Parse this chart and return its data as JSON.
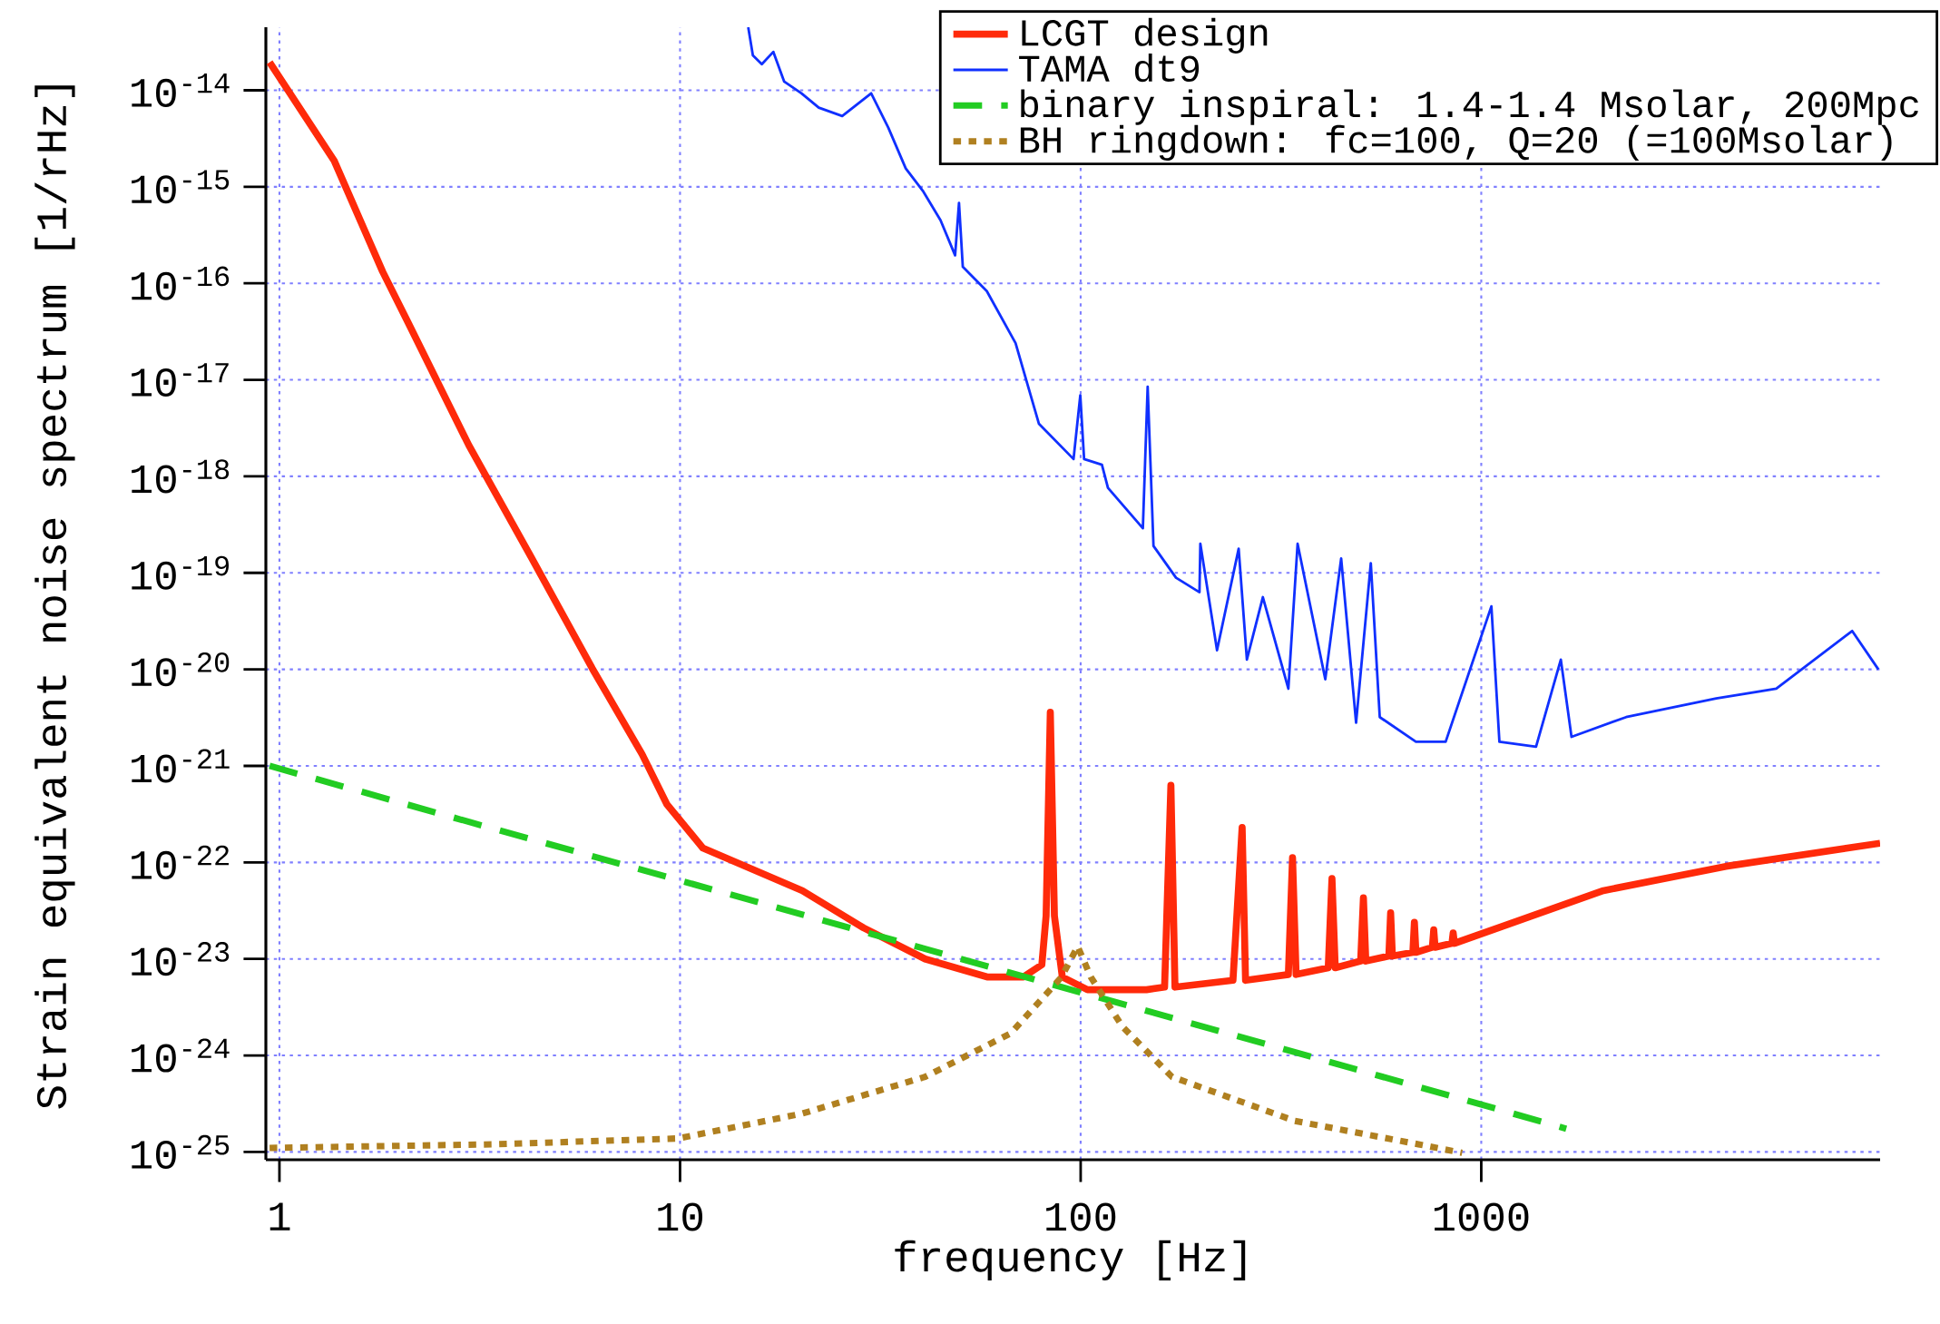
{
  "chart_data": {
    "type": "line",
    "xlabel": "frequency [Hz]",
    "ylabel": "Strain equivalent noise spectrum [1/rHz]",
    "log": "xy",
    "grid": true,
    "legend": "top right",
    "xlim": [
      0.925,
      9900
    ],
    "ylim": [
      8.3e-26,
      4.5e-14
    ],
    "xticks": [
      1,
      10,
      100,
      1000
    ],
    "yticks": [
      {
        "value": 1e-14,
        "label": "10$^{-14}$"
      },
      {
        "value": 1e-15,
        "label": "10$^{-15}$"
      },
      {
        "value": 1e-16,
        "label": "10$^{-16}$"
      },
      {
        "value": 1e-17,
        "label": "10$^{-17}$"
      },
      {
        "value": 1e-18,
        "label": "10$^{-18}$"
      },
      {
        "value": 1e-19,
        "label": "10$^{-19}$"
      },
      {
        "value": 1e-20,
        "label": "10$^{-20}$"
      },
      {
        "value": 1e-21,
        "label": "10$^{-21}$"
      },
      {
        "value": 1e-22,
        "label": "10$^{-22}$"
      },
      {
        "value": 1e-23,
        "label": "10$^{-23}$"
      },
      {
        "value": 1e-24,
        "label": "10$^{-24}$"
      },
      {
        "value": 1e-25,
        "label": "10$^{-25}$"
      }
    ],
    "series": [
      {
        "name": "LCGT design",
        "color": "#ff2a0a",
        "line_style": "solid",
        "x": [
          0.945,
          1.37,
          1.81,
          2.09,
          2.97,
          4.24,
          6.04,
          8.04,
          9.27,
          11.4,
          20.2,
          28.7,
          40.9,
          58.4,
          72,
          80,
          82,
          84,
          86,
          90,
          104,
          146,
          162,
          168,
          172,
          240,
          253,
          258,
          330,
          338,
          345,
          415,
          424,
          432,
          500,
          508,
          515,
          588,
          594,
          600,
          675,
          681,
          687,
          755,
          761,
          767,
          845,
          851,
          857,
          2018,
          4080,
          9900
        ],
        "values": [
          1.95e-14,
          1.86e-15,
          1.32e-16,
          4e-17,
          2.1e-18,
          1.48e-19,
          1.02e-20,
          1.32e-21,
          4e-22,
          1.41e-22,
          5.1e-23,
          2.1e-23,
          1e-23,
          6.5e-24,
          6.5e-24,
          8.7e-24,
          2.8e-23,
          3.6e-21,
          2.8e-23,
          6.5e-24,
          4.8e-24,
          4.8e-24,
          5.1e-24,
          6.3e-22,
          5.1e-24,
          6e-24,
          2.3e-22,
          6e-24,
          6.9e-24,
          1.12e-22,
          6.9e-24,
          8.1e-24,
          6.8e-23,
          8.1e-24,
          9.5e-24,
          4.3e-23,
          9.5e-24,
          1.07e-23,
          3e-23,
          1.07e-23,
          1.17e-23,
          2.4e-23,
          1.17e-23,
          1.32e-23,
          2e-23,
          1.32e-23,
          1.45e-23,
          1.86e-23,
          1.45e-23,
          5.1e-23,
          9.1e-23,
          1.58e-22
        ]
      },
      {
        "name": "TAMA dt9",
        "color": "#1030ff",
        "line_style": "solid",
        "x": [
          14.8,
          15.2,
          16.0,
          17.1,
          18.2,
          20.1,
          22.2,
          25.4,
          30.0,
          33.1,
          36.6,
          40.5,
          44.7,
          48.6,
          49.7,
          50.8,
          58.3,
          68.8,
          73.6,
          78.7,
          96,
          99.8,
          102,
          113,
          117,
          143,
          147,
          152,
          173,
          198,
          199,
          219,
          248,
          260,
          285,
          330,
          348,
          408,
          447,
          487,
          530,
          558,
          687,
          815,
          1060,
          1110,
          1370,
          1580,
          1680,
          2300,
          3860,
          5450,
          8430,
          9800
        ],
        "values": [
          4.5e-14,
          2.3e-14,
          1.86e-14,
          2.5e-14,
          1.23e-14,
          9.3e-15,
          6.6e-15,
          5.4e-15,
          9.3e-15,
          4.1e-15,
          1.55e-15,
          8.9e-16,
          4.5e-16,
          1.95e-16,
          6.8e-16,
          1.48e-16,
          8.3e-17,
          2.4e-17,
          9.1e-18,
          3.5e-18,
          1.51e-18,
          6.9e-18,
          1.51e-18,
          1.32e-18,
          7.6e-19,
          2.9e-19,
          8.5e-18,
          1.9e-19,
          8.9e-20,
          6.3e-20,
          2e-19,
          1.58e-20,
          1.78e-19,
          1.26e-20,
          5.6e-20,
          6.3e-21,
          2e-19,
          7.9e-21,
          1.41e-19,
          2.8e-21,
          1.26e-19,
          3.2e-21,
          1.78e-21,
          1.78e-21,
          4.5e-20,
          1.78e-21,
          1.58e-21,
          1.26e-20,
          2e-21,
          3.2e-21,
          5e-21,
          6.3e-21,
          2.5e-20,
          1e-20
        ]
      },
      {
        "name": "binary inspiral: 1.4-1.4 Msolar, 200Mpc",
        "color": "#22cc22",
        "line_style": "dashed",
        "x": [
          0.945,
          3,
          10,
          30,
          100,
          300,
          1000,
          1630
        ],
        "values": [
          1e-21,
          2.6e-22,
          6.5e-23,
          1.82e-23,
          4.5e-24,
          1.26e-24,
          3.1e-25,
          1.74e-25
        ]
      },
      {
        "name": "BH ringdown: fc=100, Q=20 (=100Msolar)",
        "color": "#b08020",
        "line_style": "dotted",
        "x": [
          0.945,
          3.43,
          9.9,
          20.2,
          40.9,
          67.0,
          89.6,
          98.3,
          106,
          127,
          169,
          342,
          697,
          896
        ],
        "values": [
          1.1e-25,
          1.2e-25,
          1.38e-25,
          2.5e-25,
          6e-25,
          1.7e-24,
          6.5e-24,
          1.35e-23,
          6.5e-24,
          2e-24,
          6e-25,
          2.1e-25,
          1.2e-25,
          9.8e-26
        ]
      }
    ]
  }
}
